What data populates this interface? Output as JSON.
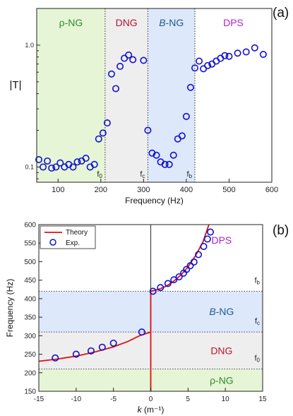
{
  "chart_data": [
    {
      "panel_label": "(a)",
      "type": "scatter",
      "xlabel": "Frequency (Hz)",
      "ylabel": "|T|",
      "xlim": [
        50,
        600
      ],
      "ylim": [
        0.075,
        2.0
      ],
      "yscale": "log",
      "xticks": [
        100,
        200,
        300,
        400,
        500,
        600
      ],
      "yticks": [
        {
          "value": 0.1,
          "label": "0.1"
        },
        {
          "value": 1.0,
          "label": "1.0"
        }
      ],
      "grid": false,
      "regions": [
        {
          "label": "ρ-NG",
          "from": 50,
          "to": 210,
          "color": "#e6f5d5",
          "label_color": "#2e8b2e",
          "italic_prefix": ""
        },
        {
          "label": "DNG",
          "from": 210,
          "to": 310,
          "color": "#eeeeee",
          "label_color": "#c01030",
          "italic_prefix": ""
        },
        {
          "label": "-NG",
          "from": 310,
          "to": 420,
          "color": "#dde8fb",
          "label_color": "#1f5a8a",
          "italic_prefix": "B"
        },
        {
          "label": "DPS",
          "from": 420,
          "to": 600,
          "color": "#ffffff",
          "label_color": "#b020c8",
          "italic_prefix": ""
        }
      ],
      "markers": [
        {
          "label": "f0",
          "x": 210
        },
        {
          "label": "fc",
          "x": 310
        },
        {
          "label": "fb",
          "x": 420
        }
      ],
      "series": [
        {
          "marker_color": "#1010d0",
          "x": [
            55,
            65,
            75,
            85,
            95,
            105,
            115,
            125,
            135,
            145,
            155,
            165,
            175,
            185,
            195,
            205,
            215,
            225,
            235,
            245,
            255,
            265,
            275,
            300,
            310,
            320,
            330,
            340,
            350,
            360,
            370,
            380,
            390,
            400,
            410,
            420,
            430,
            440,
            450,
            460,
            470,
            480,
            490,
            500,
            520,
            540,
            560,
            580
          ],
          "y": [
            0.115,
            0.1,
            0.112,
            0.098,
            0.1,
            0.108,
            0.1,
            0.105,
            0.1,
            0.11,
            0.112,
            0.118,
            0.1,
            0.105,
            0.17,
            0.19,
            0.23,
            0.58,
            0.44,
            0.67,
            0.78,
            0.83,
            0.76,
            0.75,
            0.2,
            0.13,
            0.125,
            0.11,
            0.105,
            0.105,
            0.125,
            0.17,
            0.18,
            0.26,
            0.45,
            0.65,
            0.74,
            0.64,
            0.68,
            0.7,
            0.74,
            0.78,
            0.82,
            0.81,
            0.86,
            0.88,
            0.95,
            0.84
          ]
        }
      ]
    },
    {
      "panel_label": "(b)",
      "type": "line",
      "xlabel_italic": "k",
      "xlabel_rest": " (m⁻¹)",
      "ylabel": "Frequency (Hz)",
      "xlim": [
        -15,
        15
      ],
      "ylim": [
        150,
        600
      ],
      "xticks": [
        -15,
        -10,
        -5,
        0,
        5,
        10,
        15
      ],
      "yticks": [
        150,
        200,
        250,
        300,
        350,
        400,
        450,
        500,
        550,
        600
      ],
      "grid": false,
      "legend": {
        "position": "top-left",
        "entries": [
          "Theory",
          "Exp."
        ]
      },
      "regions": [
        {
          "label": "ρ-NG",
          "from": 150,
          "to": 210,
          "color": "#e6f5d5",
          "label_color": "#2e8b2e",
          "italic_prefix": ""
        },
        {
          "label": "DNG",
          "from": 210,
          "to": 310,
          "color": "#eeeeee",
          "label_color": "#c01030",
          "italic_prefix": ""
        },
        {
          "label": "-NG",
          "from": 310,
          "to": 420,
          "color": "#dde8fb",
          "label_color": "#1f5a8a",
          "italic_prefix": "B"
        },
        {
          "label": "DPS",
          "from": 420,
          "to": 600,
          "color": "#ffffff",
          "label_color": "#b020c8",
          "italic_prefix": ""
        }
      ],
      "markers": [
        {
          "label": "f0",
          "y": 210
        },
        {
          "label": "fc",
          "y": 310
        },
        {
          "label": "fb",
          "y": 420
        }
      ],
      "series": [
        {
          "name": "Theory",
          "color": "#e01010",
          "segments": [
            {
              "x": [
                -15,
                -12.5,
                -10,
                -7.5,
                -5,
                -3,
                -1.5,
                0
              ],
              "y": [
                231,
                237,
                245,
                256,
                270,
                285,
                300,
                310
              ]
            },
            {
              "x": [
                0,
                0,
                0,
                0
              ],
              "y": [
                150,
                210,
                310,
                420
              ]
            },
            {
              "x": [
                0,
                1,
                2,
                3,
                4,
                5,
                6,
                7,
                7.8
              ],
              "y": [
                420,
                425,
                433,
                446,
                463,
                486,
                516,
                553,
                600
              ]
            }
          ]
        },
        {
          "name": "Exp.",
          "color": "#1010d0",
          "x": [
            -12.8,
            -10,
            -8,
            -6.5,
            -5,
            -1.2,
            0.3,
            1.3,
            2.3,
            3.1,
            3.8,
            4.4,
            4.8,
            5.3,
            5.8,
            6.4,
            7.1,
            7.6,
            8
          ],
          "y": [
            240,
            250,
            259,
            269,
            280,
            310,
            420,
            430,
            441,
            451,
            459,
            469,
            479,
            489,
            499,
            519,
            541,
            561,
            580
          ]
        }
      ]
    }
  ]
}
